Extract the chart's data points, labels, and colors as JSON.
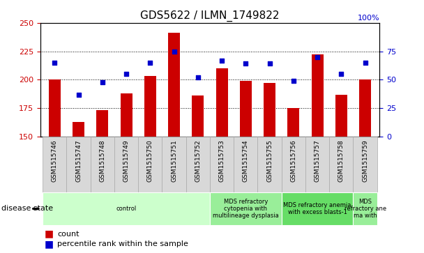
{
  "title": "GDS5622 / ILMN_1749822",
  "samples": [
    "GSM1515746",
    "GSM1515747",
    "GSM1515748",
    "GSM1515749",
    "GSM1515750",
    "GSM1515751",
    "GSM1515752",
    "GSM1515753",
    "GSM1515754",
    "GSM1515755",
    "GSM1515756",
    "GSM1515757",
    "GSM1515758",
    "GSM1515759"
  ],
  "counts": [
    200,
    163,
    173,
    188,
    203,
    241,
    186,
    210,
    199,
    197,
    175,
    222,
    187,
    200
  ],
  "percentile_ranks": [
    65,
    37,
    48,
    55,
    65,
    75,
    52,
    67,
    64,
    64,
    49,
    70,
    55,
    65
  ],
  "ylim_left": [
    150,
    250
  ],
  "ylim_right": [
    0,
    100
  ],
  "yticks_left": [
    150,
    175,
    200,
    225,
    250
  ],
  "yticks_right": [
    0,
    25,
    50,
    75,
    100
  ],
  "bar_color": "#CC0000",
  "dot_color": "#0000CC",
  "bar_width": 0.5,
  "disease_groups": [
    {
      "label": "control",
      "start": 0,
      "end": 7,
      "color": "#ccffcc"
    },
    {
      "label": "MDS refractory\ncytopenia with\nmultilineage dysplasia",
      "start": 7,
      "end": 10,
      "color": "#99ee99"
    },
    {
      "label": "MDS refractory anemia\nwith excess blasts-1",
      "start": 10,
      "end": 13,
      "color": "#66dd66"
    },
    {
      "label": "MDS\nrefractory ane\nma with",
      "start": 13,
      "end": 14,
      "color": "#99ee99"
    }
  ],
  "left_tick_color": "#CC0000",
  "right_tick_color": "#0000CC",
  "legend_count_label": "count",
  "legend_pct_label": "percentile rank within the sample",
  "disease_state_label": "disease state",
  "label_box_color": "#d8d8d8",
  "label_box_edge": "#aaaaaa",
  "title_fontsize": 11,
  "tick_fontsize": 8,
  "sample_fontsize": 6.5,
  "disease_fontsize": 6,
  "legend_fontsize": 8
}
